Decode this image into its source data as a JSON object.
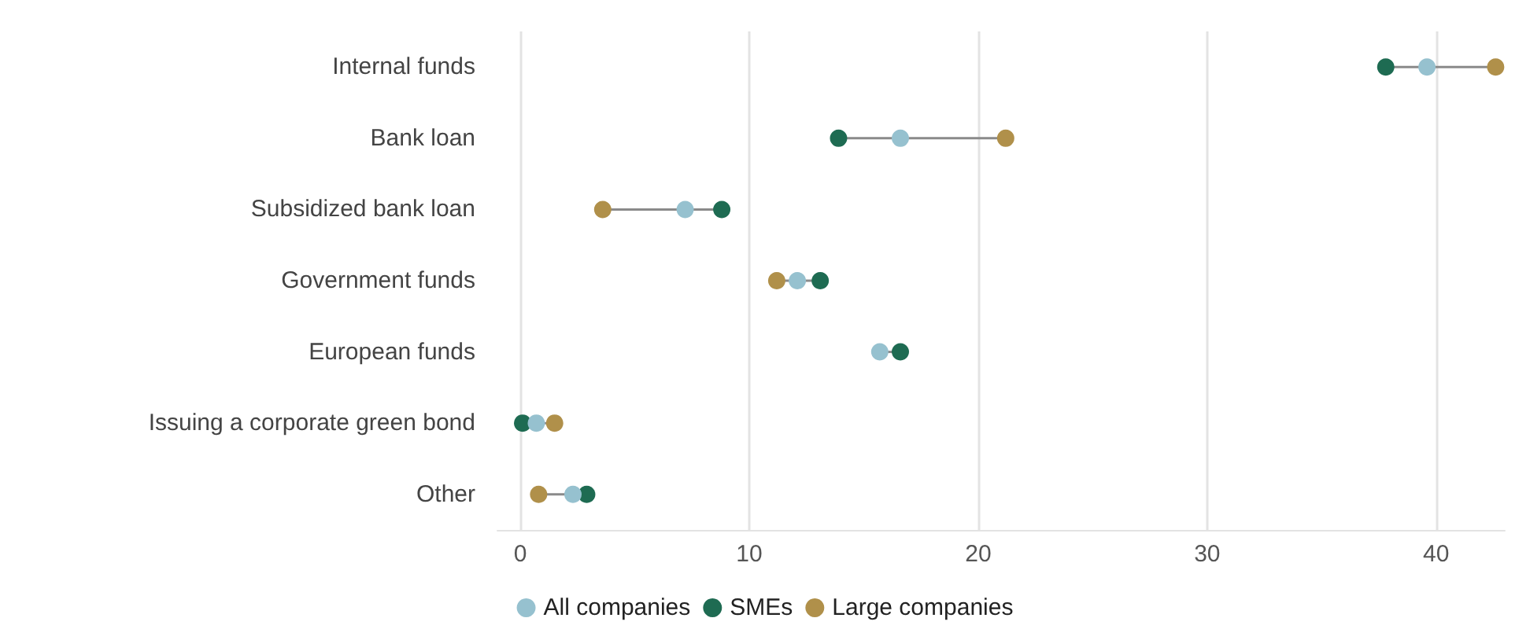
{
  "chart_data": {
    "type": "scatter",
    "orientation": "horizontal",
    "categories": [
      "Internal funds",
      "Bank loan",
      "Subsidized bank loan",
      "Government funds",
      "European funds",
      "Issuing a corporate green bond",
      "Other"
    ],
    "series": [
      {
        "name": "All companies",
        "color": "#96c1cf",
        "values": [
          39.6,
          16.6,
          7.2,
          12.1,
          15.7,
          0.7,
          2.3
        ]
      },
      {
        "name": "SMEs",
        "color": "#1e6b52",
        "values": [
          37.8,
          13.9,
          8.8,
          13.1,
          16.6,
          0.1,
          2.9
        ]
      },
      {
        "name": "Large companies",
        "color": "#b0904a",
        "values": [
          42.6,
          21.2,
          3.6,
          11.2,
          null,
          1.5,
          0.8
        ]
      }
    ],
    "xlim": [
      -1,
      43
    ],
    "xticks": [
      0,
      10,
      20,
      30,
      40
    ],
    "grid": "x",
    "legend": "bottom",
    "marker": "circle"
  }
}
